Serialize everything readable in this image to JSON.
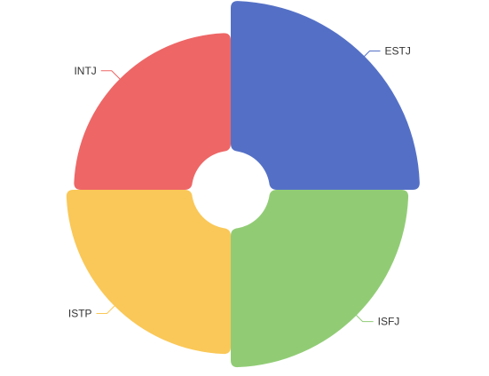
{
  "chart_data": {
    "type": "pie",
    "variant": "rose",
    "title": "",
    "legend": "none",
    "categories": [
      "ESTJ",
      "ISFJ",
      "ISTP",
      "INTJ"
    ],
    "values": [
      100,
      94,
      87,
      83
    ],
    "colors": [
      "#5470c6",
      "#91cc75",
      "#fac858",
      "#ee6666"
    ]
  }
}
